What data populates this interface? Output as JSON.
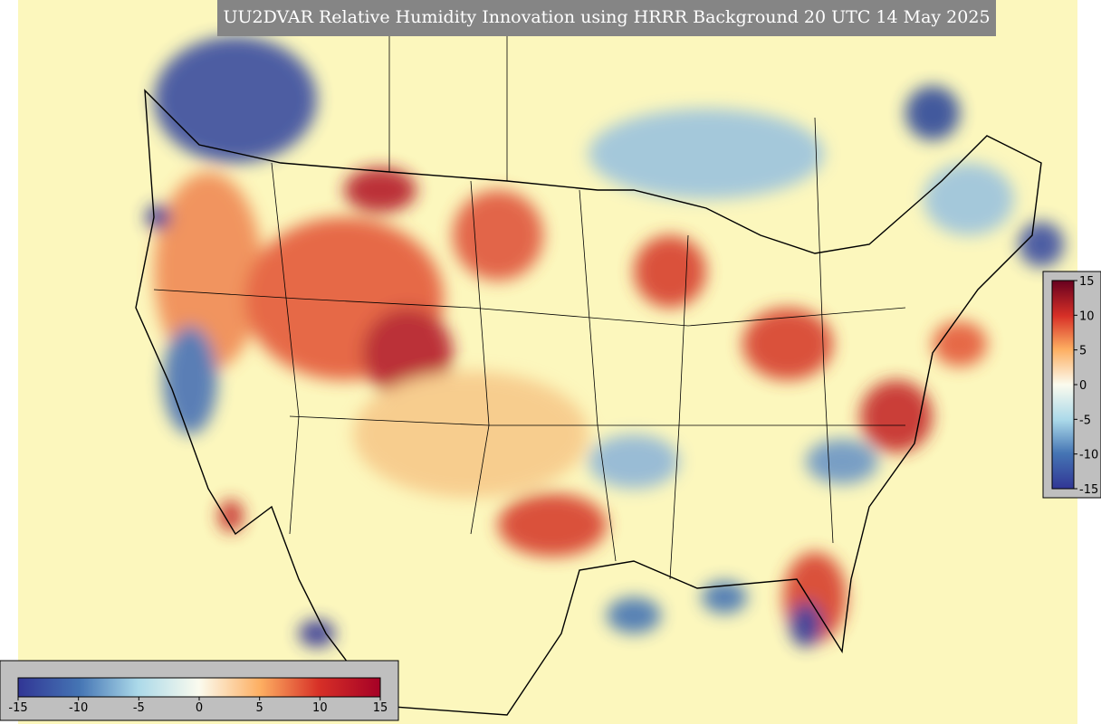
{
  "title": "UU2DVAR Relative Humidity Innovation using HRRR Background 20 UTC 14 May 2025",
  "colorbar_horizontal": {
    "ticks": [
      -15,
      -10,
      -5,
      0,
      5,
      10,
      15
    ]
  },
  "colorbar_vertical": {
    "ticks": [
      15,
      10,
      5,
      0,
      -5,
      -10,
      -15
    ]
  }
}
